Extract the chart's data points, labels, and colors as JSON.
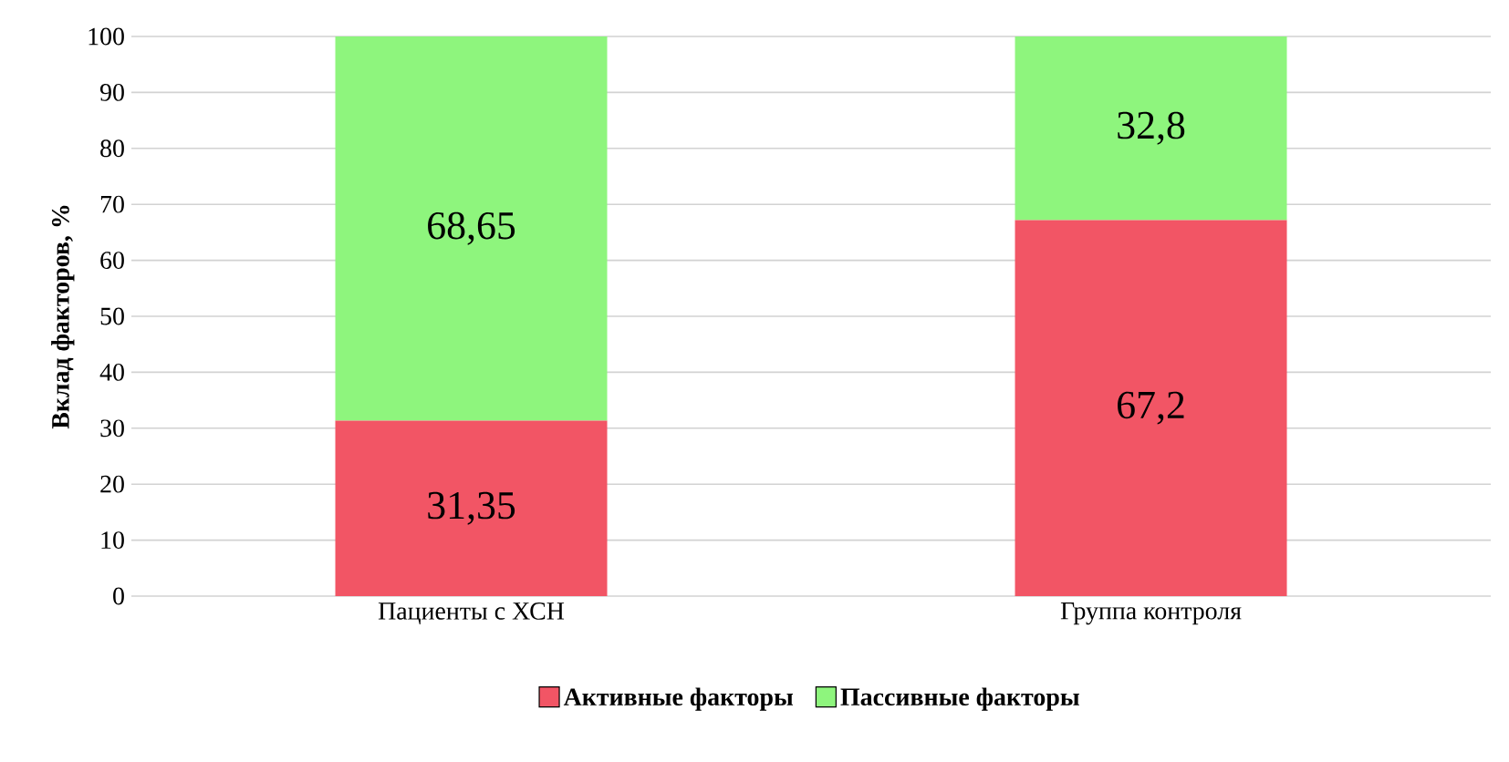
{
  "chart_data": {
    "type": "bar",
    "stacked": true,
    "ylabel": "Вклад факторов, %",
    "categories": [
      "Пациенты с ХСН",
      "Группа контроля"
    ],
    "series": [
      {
        "name": "Активные факторы",
        "color": "#f25565",
        "values": [
          31.35,
          67.2
        ],
        "value_labels": [
          "31,35",
          "67,2"
        ]
      },
      {
        "name": "Пассивные факторы",
        "color": "#8ef57d",
        "values": [
          68.65,
          32.8
        ],
        "value_labels": [
          "68,65",
          "32,8"
        ]
      }
    ],
    "ylim": [
      0,
      100
    ],
    "yticks": [
      0,
      10,
      20,
      30,
      40,
      50,
      60,
      70,
      80,
      90,
      100
    ],
    "grid": "y",
    "legend": "bottom"
  }
}
